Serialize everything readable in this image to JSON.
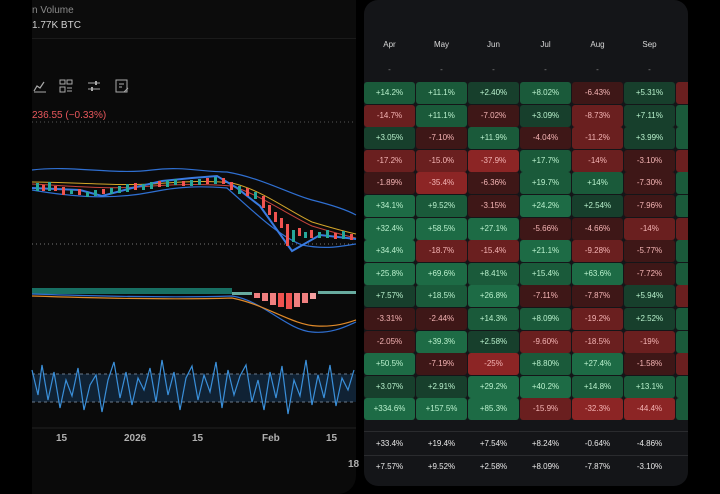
{
  "chart": {
    "volume_label": "n Volume",
    "volume_value": "1.77K BTC",
    "price_change": "236.55 (−0.33%)",
    "x_ticks": [
      "15",
      "2026",
      "15",
      "Feb",
      "15"
    ],
    "x_tick_cut": "18",
    "toolbar_icons": [
      "line-chart-icon",
      "layout-icon",
      "settings-sliders-icon",
      "edit-icon"
    ]
  },
  "heatmap": {
    "months": [
      "Apr",
      "May",
      "Jun",
      "Jul",
      "Aug",
      "Sep"
    ],
    "placeholder": "-",
    "rows": [
      [
        "+14.2%",
        "+11.1%",
        "+2.40%",
        "+8.02%",
        "-6.43%",
        "+5.31%"
      ],
      [
        "-14.7%",
        "+11.1%",
        "-7.02%",
        "+3.09%",
        "-8.73%",
        "+7.11%"
      ],
      [
        "+3.05%",
        "-7.10%",
        "+11.9%",
        "-4.04%",
        "-11.2%",
        "+3.99%"
      ],
      [
        "-17.2%",
        "-15.0%",
        "-37.9%",
        "+17.7%",
        "-14%",
        "-3.10%"
      ],
      [
        "-1.89%",
        "-35.4%",
        "-6.36%",
        "+19.7%",
        "+14%",
        "-7.30%"
      ],
      [
        "+34.1%",
        "+9.52%",
        "-3.15%",
        "+24.2%",
        "+2.54%",
        "-7.96%"
      ],
      [
        "+32.4%",
        "+58.5%",
        "+27.1%",
        "-5.66%",
        "-4.66%",
        "-14%"
      ],
      [
        "+34.4%",
        "-18.7%",
        "-15.4%",
        "+21.1%",
        "-9.28%",
        "-5.77%"
      ],
      [
        "+25.8%",
        "+69.6%",
        "+8.41%",
        "+15.4%",
        "+63.6%",
        "-7.72%"
      ],
      [
        "+7.57%",
        "+18.5%",
        "+26.8%",
        "-7.11%",
        "-7.87%",
        "+5.94%"
      ],
      [
        "-3.31%",
        "-2.44%",
        "+14.3%",
        "+8.09%",
        "-19.2%",
        "+2.52%"
      ],
      [
        "-2.05%",
        "+39.3%",
        "+2.58%",
        "-9.60%",
        "-18.5%",
        "-19%"
      ],
      [
        "+50.5%",
        "-7.19%",
        "-25%",
        "+8.80%",
        "+27.4%",
        "-1.58%"
      ],
      [
        "+3.07%",
        "+2.91%",
        "+29.2%",
        "+40.2%",
        "+14.8%",
        "+13.1%"
      ],
      [
        "+334.6%",
        "+157.5%",
        "+85.3%",
        "-15.9%",
        "-32.3%",
        "-44.4%"
      ]
    ],
    "average": [
      "+33.4%",
      "+19.4%",
      "+7.54%",
      "+8.24%",
      "-0.64%",
      "-4.86%"
    ],
    "median": [
      "+7.57%",
      "+9.52%",
      "+2.58%",
      "+8.09%",
      "-7.87%",
      "-3.10%"
    ],
    "colors": {
      "green_light": "#1f5a3c",
      "green_dark": "#0f3a26",
      "green_bright": "#1e7a4a",
      "red_light": "#7a2727",
      "red_dark": "#3d1414",
      "red_bright": "#a02a2a"
    }
  }
}
